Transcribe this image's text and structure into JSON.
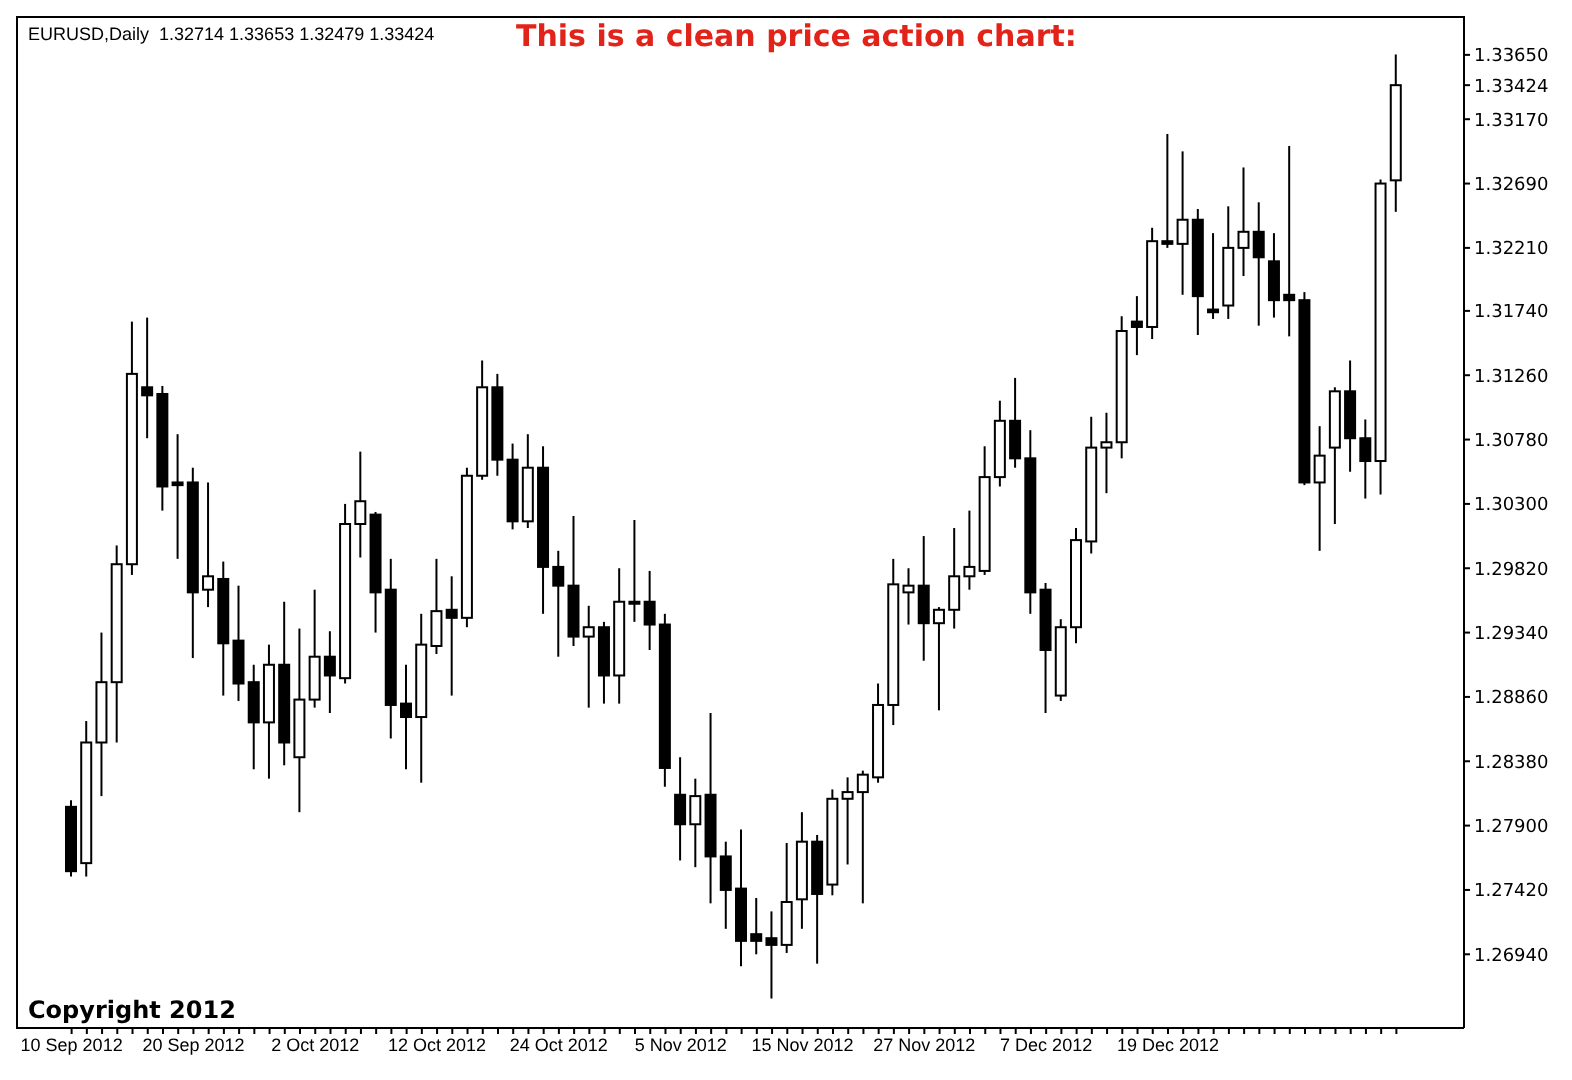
{
  "chart_data": {
    "type": "candlestick",
    "title": "This is a clean price action chart:",
    "subtitle": "EURUSD,Daily  1.32714 1.33653 1.32479 1.33424",
    "annotations": [
      "Copyright 2012"
    ],
    "color": "#000000",
    "categories": [
      "10 Sep 2012",
      null,
      null,
      null,
      null,
      null,
      null,
      null,
      "20 Sep 2012",
      null,
      null,
      null,
      null,
      null,
      null,
      null,
      "2 Oct 2012",
      null,
      null,
      null,
      null,
      null,
      null,
      null,
      "12 Oct 2012",
      null,
      null,
      null,
      null,
      null,
      null,
      null,
      "24 Oct 2012",
      null,
      null,
      null,
      null,
      null,
      null,
      null,
      "5 Nov 2012",
      null,
      null,
      null,
      null,
      null,
      null,
      null,
      "15 Nov 2012",
      null,
      null,
      null,
      null,
      null,
      null,
      null,
      "27 Nov 2012",
      null,
      null,
      null,
      null,
      null,
      null,
      null,
      "7 Dec 2012",
      null,
      null,
      null,
      null,
      null,
      null,
      null,
      "19 Dec 2012",
      null,
      null,
      null,
      null,
      null,
      null,
      null,
      null,
      null,
      null,
      null,
      null,
      null,
      null,
      null
    ],
    "ohlc": [
      [
        1.2804,
        1.2809,
        1.2752,
        1.2756
      ],
      [
        1.2762,
        1.2868,
        1.2752,
        1.2852
      ],
      [
        1.2852,
        1.2934,
        1.2812,
        1.2897
      ],
      [
        1.2897,
        1.2999,
        1.2852,
        1.2985
      ],
      [
        1.2985,
        1.3166,
        1.2977,
        1.3127
      ],
      [
        1.3117,
        1.3169,
        1.3079,
        1.3111
      ],
      [
        1.3112,
        1.3118,
        1.3025,
        1.3043
      ],
      [
        1.3046,
        1.3082,
        1.2989,
        1.3044
      ],
      [
        1.3046,
        1.3057,
        1.2915,
        1.2964
      ],
      [
        1.2966,
        1.3046,
        1.2953,
        1.2976
      ],
      [
        1.2974,
        1.2987,
        1.2887,
        1.2926
      ],
      [
        1.2928,
        1.2969,
        1.2883,
        1.2896
      ],
      [
        1.2897,
        1.291,
        1.2832,
        1.2867
      ],
      [
        1.2867,
        1.2925,
        1.2825,
        1.291
      ],
      [
        1.291,
        1.2957,
        1.2835,
        1.2852
      ],
      [
        1.2841,
        1.2937,
        1.28,
        1.2884
      ],
      [
        1.2884,
        1.2966,
        1.2878,
        1.2916
      ],
      [
        1.2916,
        1.2935,
        1.2874,
        1.2902
      ],
      [
        1.29,
        1.303,
        1.2896,
        1.3015
      ],
      [
        1.3015,
        1.3069,
        1.299,
        1.3032
      ],
      [
        1.3022,
        1.3024,
        1.2934,
        1.2964
      ],
      [
        1.2966,
        1.2989,
        1.2855,
        1.288
      ],
      [
        1.2881,
        1.291,
        1.2832,
        1.2871
      ],
      [
        1.2871,
        1.2948,
        1.2822,
        1.2925
      ],
      [
        1.2924,
        1.2989,
        1.2918,
        1.295
      ],
      [
        1.2951,
        1.2976,
        1.2887,
        1.2945
      ],
      [
        1.2945,
        1.3057,
        1.2938,
        1.3051
      ],
      [
        1.3051,
        1.3137,
        1.3048,
        1.3117
      ],
      [
        1.3117,
        1.3127,
        1.3051,
        1.3063
      ],
      [
        1.3063,
        1.3075,
        1.3011,
        1.3017
      ],
      [
        1.3017,
        1.3082,
        1.3012,
        1.3057
      ],
      [
        1.3057,
        1.3073,
        1.2948,
        1.2983
      ],
      [
        1.2983,
        1.2995,
        1.2916,
        1.2969
      ],
      [
        1.2969,
        1.3021,
        1.2924,
        1.2931
      ],
      [
        1.2931,
        1.2954,
        1.2878,
        1.2938
      ],
      [
        1.2938,
        1.2942,
        1.2881,
        1.2902
      ],
      [
        1.2902,
        1.2982,
        1.2881,
        1.2957
      ],
      [
        1.2957,
        1.3018,
        1.2942,
        1.2957
      ],
      [
        1.2957,
        1.298,
        1.2921,
        1.294
      ],
      [
        1.294,
        1.2948,
        1.2819,
        1.2833
      ],
      [
        1.2813,
        1.2841,
        1.2764,
        1.2791
      ],
      [
        1.2791,
        1.2825,
        1.2759,
        1.2812
      ],
      [
        1.2813,
        1.2874,
        1.2732,
        1.2767
      ],
      [
        1.2767,
        1.2778,
        1.2713,
        1.2742
      ],
      [
        1.2743,
        1.2787,
        1.2685,
        1.2704
      ],
      [
        1.2709,
        1.2736,
        1.2694,
        1.2704
      ],
      [
        1.2706,
        1.2726,
        1.2661,
        1.2701
      ],
      [
        1.2701,
        1.2777,
        1.2695,
        1.2733
      ],
      [
        1.2735,
        1.28,
        1.2713,
        1.2778
      ],
      [
        1.2778,
        1.2783,
        1.2687,
        1.2739
      ],
      [
        1.2746,
        1.2817,
        1.2738,
        1.281
      ],
      [
        1.281,
        1.2826,
        1.2761,
        1.2815
      ],
      [
        1.2815,
        1.2831,
        1.2732,
        1.2828
      ],
      [
        1.2826,
        1.2896,
        1.2822,
        1.288
      ],
      [
        1.288,
        1.2989,
        1.2865,
        1.297
      ],
      [
        1.2964,
        1.2982,
        1.294,
        1.2969
      ],
      [
        1.2969,
        1.3006,
        1.2913,
        1.2941
      ],
      [
        1.2941,
        1.2953,
        1.2876,
        1.2951
      ],
      [
        1.2951,
        1.3012,
        1.2937,
        1.2976
      ],
      [
        1.2976,
        1.3025,
        1.2966,
        1.2983
      ],
      [
        1.298,
        1.3073,
        1.2977,
        1.305
      ],
      [
        1.305,
        1.3107,
        1.3043,
        1.3092
      ],
      [
        1.3092,
        1.3124,
        1.3057,
        1.3064
      ],
      [
        1.3064,
        1.3085,
        1.2948,
        1.2964
      ],
      [
        1.2966,
        1.2971,
        1.2874,
        1.2921
      ],
      [
        1.2887,
        1.2944,
        1.2883,
        1.2938
      ],
      [
        1.2938,
        1.3012,
        1.2926,
        1.3003
      ],
      [
        1.3002,
        1.3095,
        1.2993,
        1.3072
      ],
      [
        1.3072,
        1.3098,
        1.3038,
        1.3076
      ],
      [
        1.3076,
        1.317,
        1.3064,
        1.3159
      ],
      [
        1.3166,
        1.3185,
        1.3141,
        1.3162
      ],
      [
        1.3162,
        1.3236,
        1.3153,
        1.3226
      ],
      [
        1.3226,
        1.3306,
        1.3221,
        1.3224
      ],
      [
        1.3224,
        1.3293,
        1.3186,
        1.3242
      ],
      [
        1.3242,
        1.325,
        1.3156,
        1.3185
      ],
      [
        1.3175,
        1.3232,
        1.3168,
        1.3173
      ],
      [
        1.3178,
        1.3252,
        1.3168,
        1.3221
      ],
      [
        1.3221,
        1.3281,
        1.32,
        1.3233
      ],
      [
        1.3233,
        1.3255,
        1.3163,
        1.3214
      ],
      [
        1.3211,
        1.3232,
        1.3169,
        1.3182
      ],
      [
        1.3186,
        1.3297,
        1.3155,
        1.3182
      ],
      [
        1.3182,
        1.3188,
        1.3044,
        1.3046
      ],
      [
        1.3046,
        1.3088,
        1.2995,
        1.3066
      ],
      [
        1.3072,
        1.3117,
        1.3015,
        1.3114
      ],
      [
        1.3114,
        1.3137,
        1.3054,
        1.3079
      ],
      [
        1.3079,
        1.3093,
        1.3034,
        1.3062
      ],
      [
        1.3062,
        1.3272,
        1.3037,
        1.3269
      ],
      [
        1.32714,
        1.33653,
        1.32479,
        1.33424
      ]
    ],
    "ylim": [
      1.2639,
      1.3394
    ],
    "yticks": [
      {
        "value": 1.2694,
        "label": "1.26940"
      },
      {
        "value": 1.2742,
        "label": "1.27420"
      },
      {
        "value": 1.279,
        "label": "1.27900"
      },
      {
        "value": 1.2838,
        "label": "1.28380"
      },
      {
        "value": 1.2886,
        "label": "1.28860"
      },
      {
        "value": 1.2934,
        "label": "1.29340"
      },
      {
        "value": 1.2982,
        "label": "1.29820"
      },
      {
        "value": 1.303,
        "label": "1.30300"
      },
      {
        "value": 1.3078,
        "label": "1.30780"
      },
      {
        "value": 1.3126,
        "label": "1.31260"
      },
      {
        "value": 1.3174,
        "label": "1.31740"
      },
      {
        "value": 1.3221,
        "label": "1.32210"
      },
      {
        "value": 1.3269,
        "label": "1.32690"
      },
      {
        "value": 1.3317,
        "label": "1.33170"
      },
      {
        "value": 1.33424,
        "label": "1.33424"
      },
      {
        "value": 1.3365,
        "label": "1.33650"
      }
    ]
  }
}
